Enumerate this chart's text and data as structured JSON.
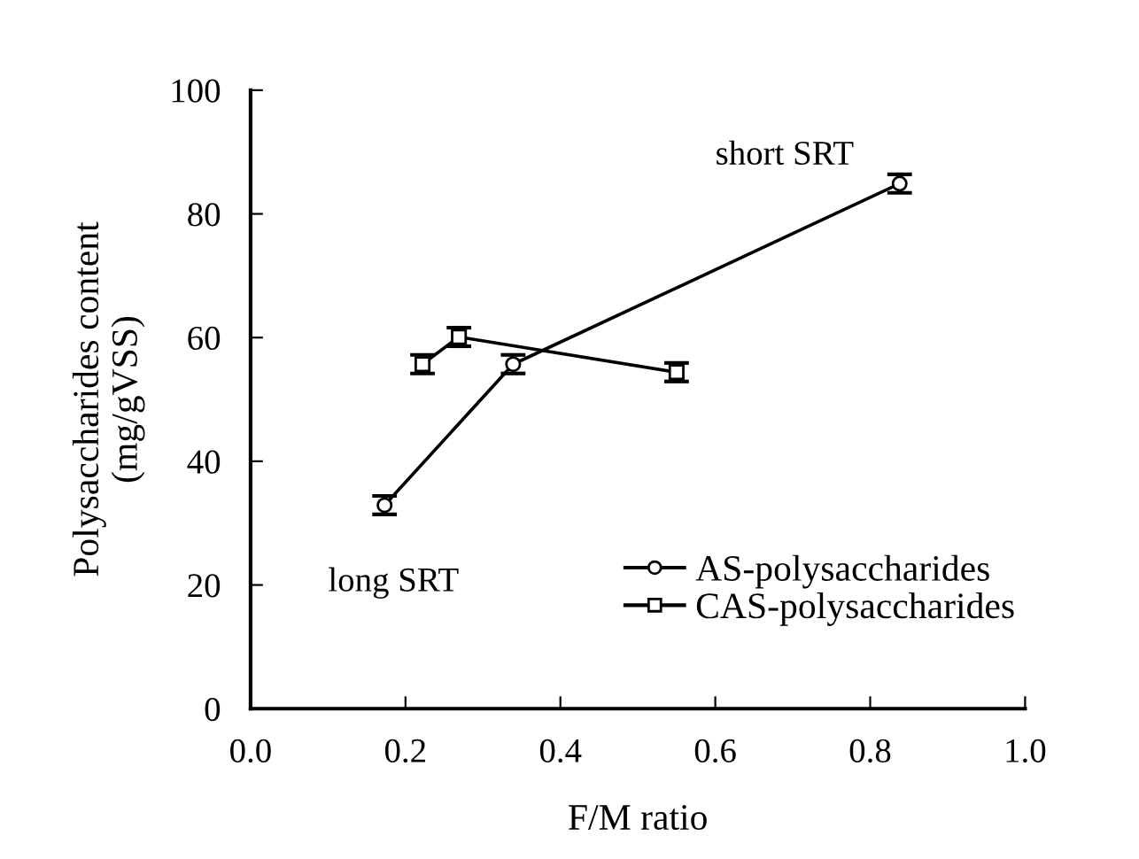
{
  "chart_data": {
    "type": "line",
    "xlabel": "F/M ratio",
    "ylabel": "Polysaccharides content\n(mg/gVSS)",
    "xlim": [
      0.0,
      1.0
    ],
    "xticks": [
      {
        "value": 0,
        "label": "0.0"
      },
      {
        "value": 0.2,
        "label": "0.2"
      },
      {
        "value": 0.4,
        "label": "0.4"
      },
      {
        "value": 0.6,
        "label": "0.6"
      },
      {
        "value": 0.8,
        "label": "0.8"
      },
      {
        "value": 1,
        "label": "1.0"
      }
    ],
    "ylim": [
      0,
      100
    ],
    "yticks": [
      0,
      20,
      40,
      60,
      80,
      100
    ],
    "grid": false,
    "legend": "bottom right",
    "series": [
      {
        "name": "AS-polysaccharides",
        "color": "#000000",
        "marker": "circle",
        "x": [
          0.173,
          0.339,
          0.838
        ],
        "values": [
          32.9,
          55.7,
          84.9
        ],
        "errors": [
          1.5,
          1.5,
          1.5
        ]
      },
      {
        "name": "CAS-polysaccharides",
        "color": "#000000",
        "marker": "square",
        "x": [
          0.222,
          0.269,
          0.55
        ],
        "values": [
          55.7,
          60.1,
          54.4
        ],
        "errors": [
          1.5,
          1.5,
          1.5
        ]
      }
    ],
    "annotations": [
      "short SRT",
      "long SRT"
    ]
  }
}
